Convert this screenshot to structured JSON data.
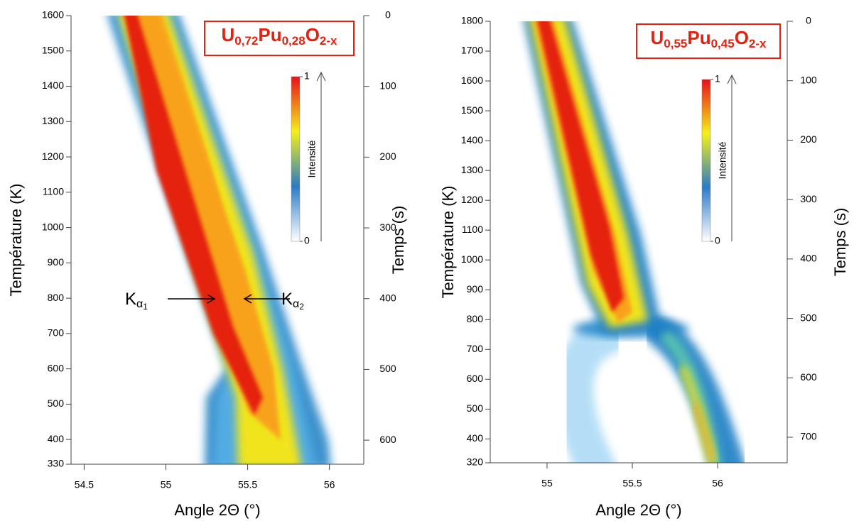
{
  "chart_data": [
    {
      "type": "heatmap",
      "title": [
        {
          "text": "U",
          "level": 0
        },
        {
          "text": "0,72",
          "level": 1
        },
        {
          "text": "Pu",
          "level": 0
        },
        {
          "text": "0,28",
          "level": 1
        },
        {
          "text": "O",
          "level": 0
        },
        {
          "text": "2-x",
          "level": 1
        }
      ],
      "xlabel": "Angle 2Θ (°)",
      "ylabel": "Température (K)",
      "y2label": "Temps (s)",
      "xlim": [
        54.42,
        56.21
      ],
      "xticks": [
        54.5,
        55,
        55.5,
        56
      ],
      "ylim": [
        330,
        1600
      ],
      "yticks": [
        330,
        400,
        500,
        600,
        700,
        800,
        900,
        1000,
        1100,
        1200,
        1300,
        1400,
        1500,
        1600
      ],
      "y2lim": [
        0,
        634
      ],
      "y2ticks": [
        0,
        100,
        200,
        300,
        400,
        500,
        600
      ],
      "colorbar": {
        "label": "Intensité",
        "ticks": [
          0,
          1
        ],
        "colors": [
          "#ffffff",
          "#2b7bc4",
          "#f4f01a",
          "#e8101a"
        ]
      },
      "annotations": [
        {
          "parts": [
            {
              "text": "K",
              "level": 0
            },
            {
              "text": "α",
              "level": 1
            },
            {
              "text": "1",
              "level": 2
            }
          ]
        },
        {
          "parts": [
            {
              "text": "K",
              "level": 0
            },
            {
              "text": "α",
              "level": 1
            },
            {
              "text": "2",
              "level": 2
            }
          ]
        }
      ]
    },
    {
      "type": "heatmap",
      "title": [
        {
          "text": "U",
          "level": 0
        },
        {
          "text": "0,55",
          "level": 1
        },
        {
          "text": "Pu",
          "level": 0
        },
        {
          "text": "0,45",
          "level": 1
        },
        {
          "text": "O",
          "level": 0
        },
        {
          "text": "2-x",
          "level": 1
        }
      ],
      "xlabel": "Angle 2Θ (°)",
      "ylabel": "Température (K)",
      "y2label": "Temps (s)",
      "xlim": [
        54.667,
        56.408
      ],
      "xticks": [
        55,
        55.5,
        56
      ],
      "ylim": [
        320,
        1800
      ],
      "yticks": [
        320,
        400,
        500,
        600,
        700,
        800,
        900,
        1000,
        1100,
        1200,
        1300,
        1400,
        1500,
        1600,
        1700,
        1800
      ],
      "y2lim": [
        0,
        743
      ],
      "y2ticks": [
        0,
        100,
        200,
        300,
        400,
        500,
        600,
        700
      ],
      "colorbar": {
        "label": "Intensité",
        "ticks": [
          0,
          1
        ],
        "colors": [
          "#ffffff",
          "#2b7bc4",
          "#f4f01a",
          "#e8101a"
        ]
      },
      "annotations": []
    }
  ]
}
